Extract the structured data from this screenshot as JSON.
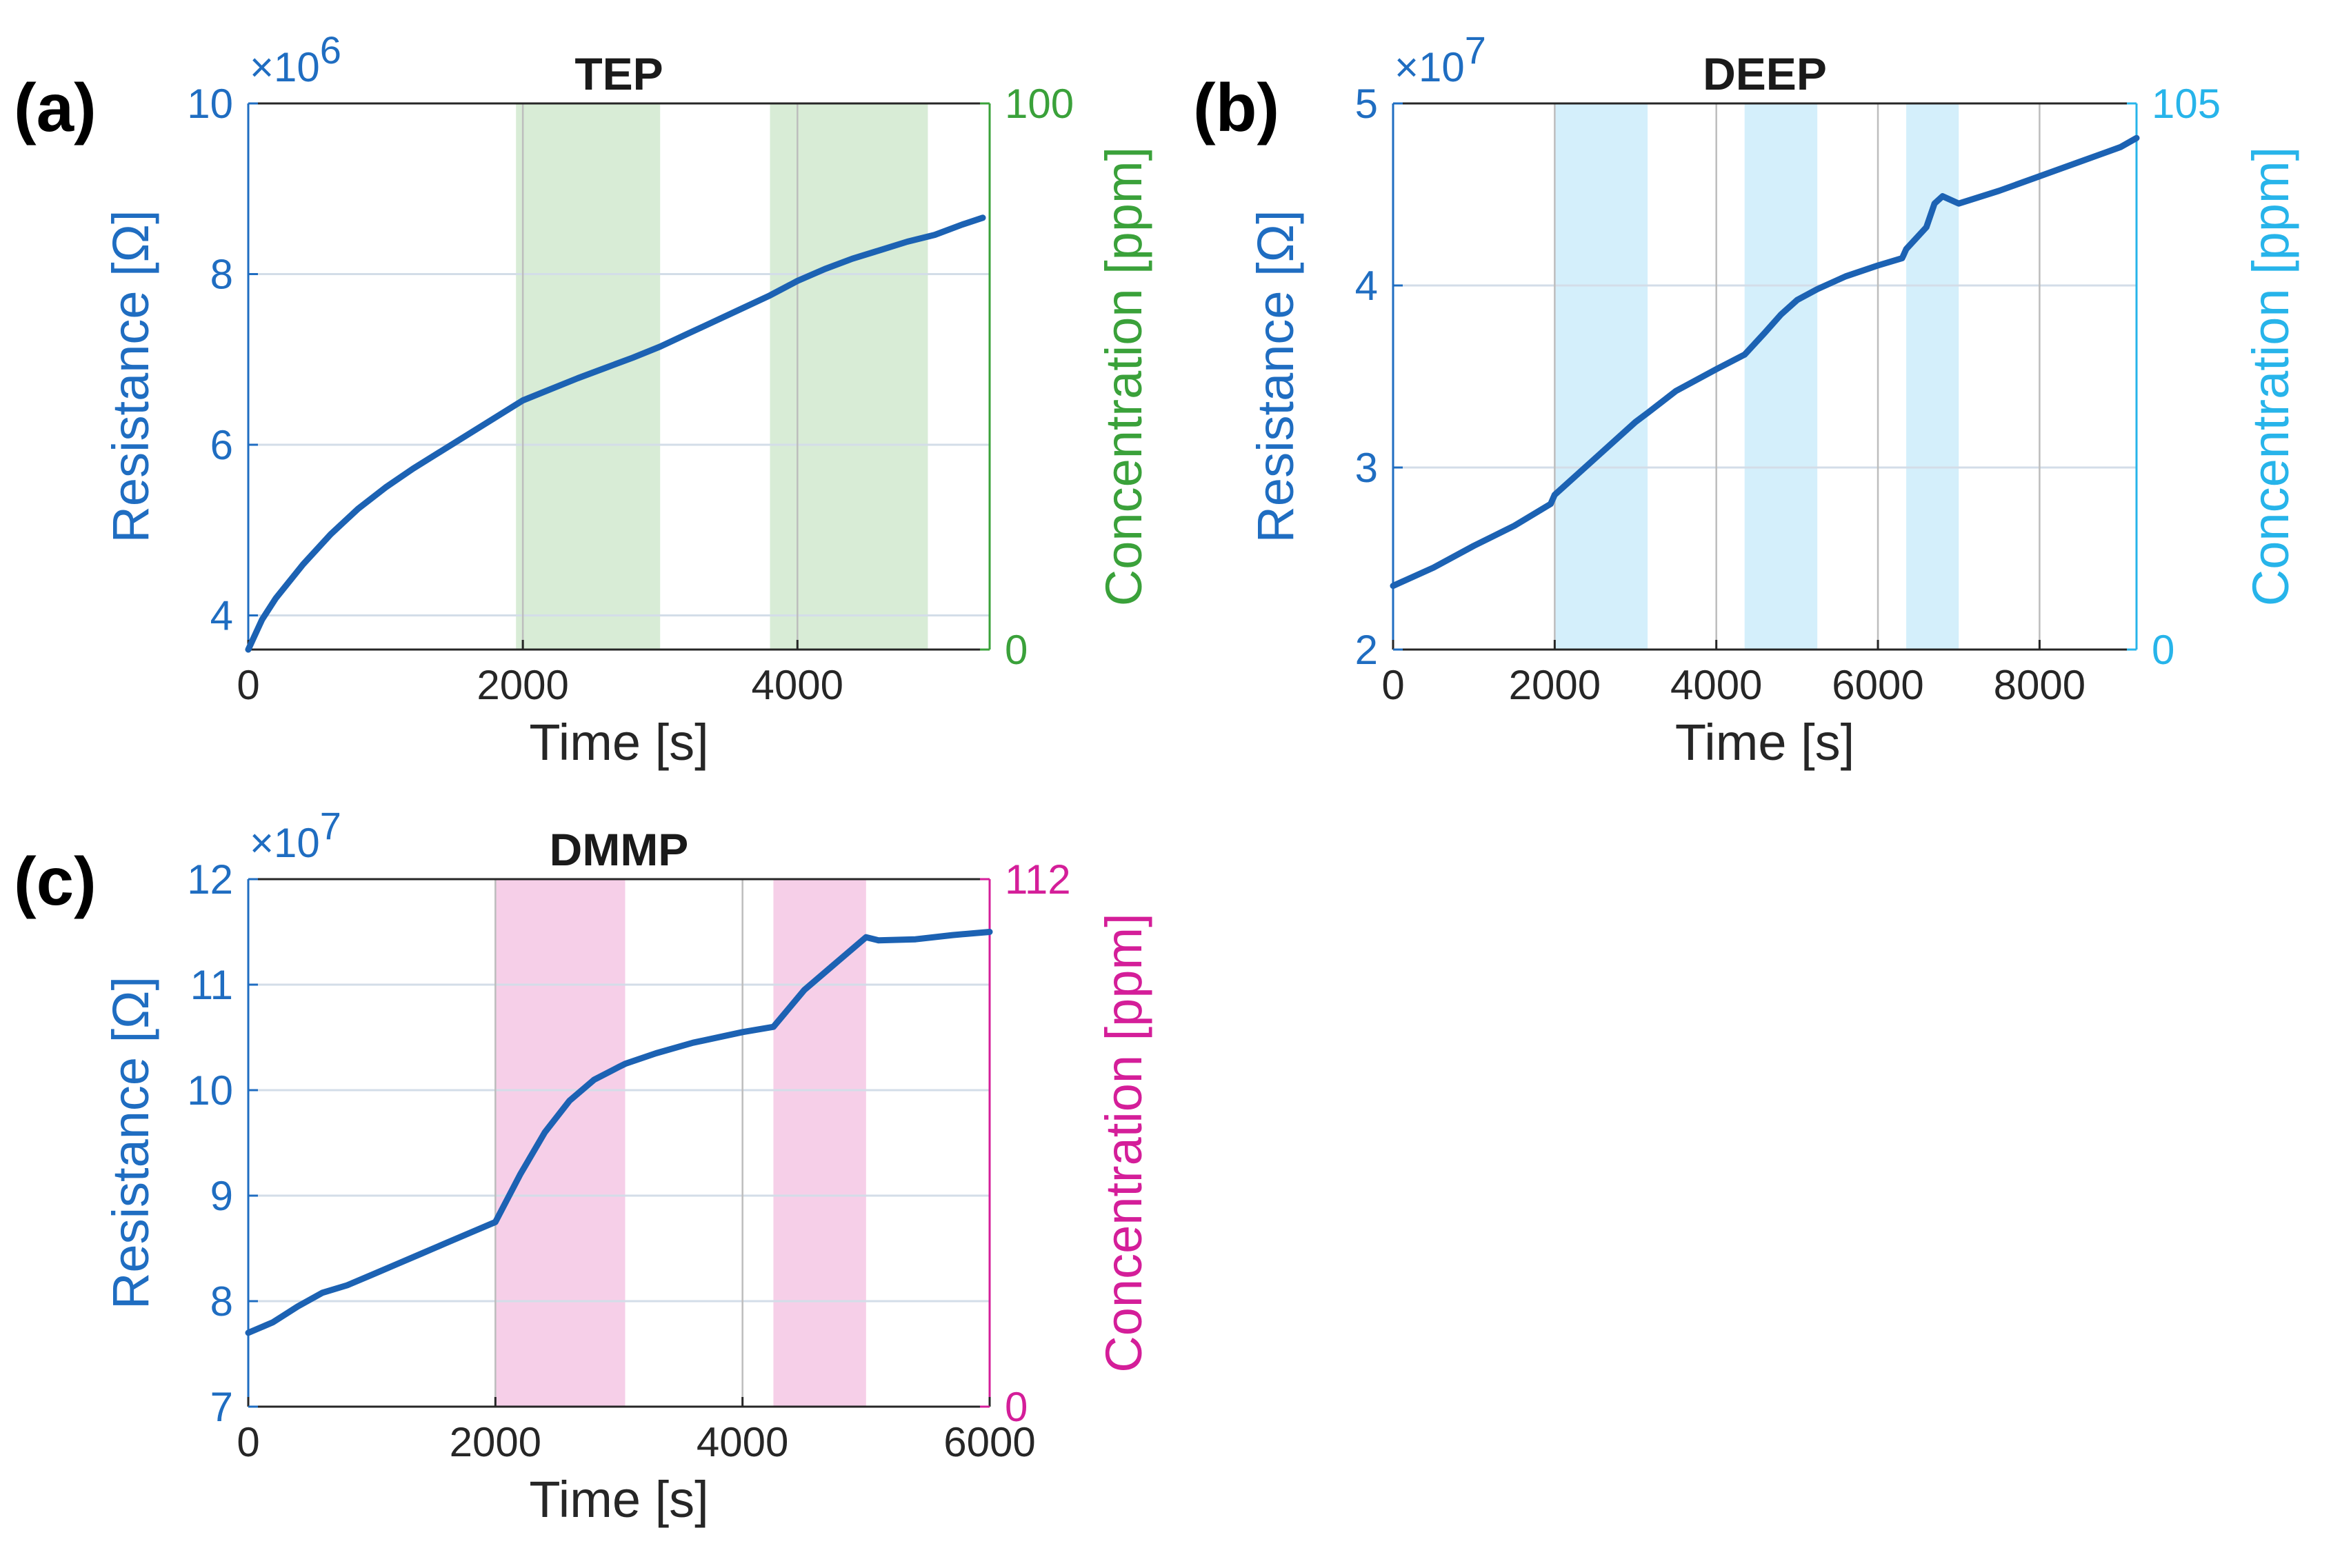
{
  "panel_labels": [
    "(a)",
    "(b)",
    "(c)"
  ],
  "colors": {
    "resistance": "#1f6dc1",
    "line": "#1c62b3",
    "grid": "#d3dde8",
    "vgrid": "#bdbdbd",
    "tep": "#3aa13a",
    "tep_band": "#d8ecd6",
    "deep": "#27b4ea",
    "deep_band": "#d4effb",
    "dmmp": "#d41e99",
    "dmmp_band": "#f6cfe8"
  },
  "chart_data": [
    {
      "type": "line",
      "panel": "(a)",
      "title": "TEP",
      "xlabel": "Time [s]",
      "ylabel": "Resistance [Ω]",
      "y2label": "Concentration [ppm]",
      "multiplier": "×10",
      "exponent": "6",
      "xlim": [
        0,
        5400
      ],
      "ylim": [
        3.6,
        10
      ],
      "y2lim": [
        0,
        100
      ],
      "xticks": [
        "0",
        "2000",
        "4000"
      ],
      "xtick_values": [
        0,
        2000,
        4000
      ],
      "yticks": [
        "4",
        "6",
        "8",
        "10"
      ],
      "ytick_values": [
        4,
        6,
        8,
        10
      ],
      "y2ticks": [
        "0",
        "100"
      ],
      "y2tick_values": [
        0,
        100
      ],
      "grid": true,
      "exposures": [
        [
          1950,
          3000
        ],
        [
          3800,
          4950
        ]
      ],
      "series": [
        {
          "name": "Resistance",
          "x": [
            0,
            100,
            200,
            400,
            600,
            800,
            1000,
            1200,
            1400,
            1600,
            1800,
            2000,
            2200,
            2400,
            2600,
            2800,
            3000,
            3200,
            3400,
            3600,
            3800,
            4000,
            4200,
            4400,
            4600,
            4800,
            5000,
            5200,
            5350
          ],
          "values": [
            3.6,
            3.95,
            4.2,
            4.6,
            4.95,
            5.25,
            5.5,
            5.72,
            5.92,
            6.12,
            6.32,
            6.52,
            6.65,
            6.78,
            6.9,
            7.02,
            7.15,
            7.3,
            7.45,
            7.6,
            7.75,
            7.92,
            8.06,
            8.18,
            8.28,
            8.38,
            8.46,
            8.58,
            8.66
          ]
        }
      ]
    },
    {
      "type": "line",
      "panel": "(b)",
      "title": "DEEP",
      "xlabel": "Time [s]",
      "ylabel": "Resistance [Ω]",
      "y2label": "Concentration [ppm]",
      "multiplier": "×10",
      "exponent": "7",
      "xlim": [
        0,
        9200
      ],
      "ylim": [
        2,
        5
      ],
      "y2lim": [
        0,
        105
      ],
      "xticks": [
        "0",
        "2000",
        "4000",
        "6000",
        "8000"
      ],
      "xtick_values": [
        0,
        2000,
        4000,
        6000,
        8000
      ],
      "yticks": [
        "2",
        "3",
        "4",
        "5"
      ],
      "ytick_values": [
        2,
        3,
        4,
        5
      ],
      "y2ticks": [
        "0",
        "105"
      ],
      "y2tick_values": [
        0,
        105
      ],
      "grid": true,
      "exposures": [
        [
          2000,
          3150
        ],
        [
          4350,
          5250
        ],
        [
          6350,
          7000
        ]
      ],
      "series": [
        {
          "name": "Resistance",
          "x": [
            0,
            500,
            1000,
            1500,
            1950,
            2000,
            2500,
            3000,
            3150,
            3500,
            4000,
            4350,
            4600,
            4800,
            5000,
            5250,
            5600,
            6000,
            6300,
            6350,
            6600,
            6700,
            6800,
            7000,
            7500,
            8000,
            8500,
            9000,
            9200
          ],
          "values": [
            2.35,
            2.45,
            2.57,
            2.68,
            2.8,
            2.85,
            3.05,
            3.25,
            3.3,
            3.42,
            3.54,
            3.62,
            3.74,
            3.84,
            3.92,
            3.98,
            4.05,
            4.11,
            4.15,
            4.2,
            4.32,
            4.45,
            4.49,
            4.45,
            4.52,
            4.6,
            4.68,
            4.76,
            4.81
          ]
        }
      ]
    },
    {
      "type": "line",
      "panel": "(c)",
      "title": "DMMP",
      "xlabel": "Time [s]",
      "ylabel": "Resistance [Ω]",
      "y2label": "Concentration [ppm]",
      "multiplier": "×10",
      "exponent": "7",
      "xlim": [
        0,
        6000
      ],
      "ylim": [
        7,
        12
      ],
      "y2lim": [
        0,
        112
      ],
      "xticks": [
        "0",
        "2000",
        "4000",
        "6000"
      ],
      "xtick_values": [
        0,
        2000,
        4000,
        6000
      ],
      "yticks": [
        "7",
        "8",
        "9",
        "10",
        "11",
        "12"
      ],
      "ytick_values": [
        7,
        8,
        9,
        10,
        11,
        12
      ],
      "y2ticks": [
        "0",
        "112"
      ],
      "y2tick_values": [
        0,
        112
      ],
      "grid": true,
      "exposures": [
        [
          2000,
          3050
        ],
        [
          4250,
          5000
        ]
      ],
      "series": [
        {
          "name": "Resistance",
          "x": [
            0,
            200,
            400,
            600,
            800,
            1000,
            1200,
            1400,
            1600,
            1800,
            2000,
            2200,
            2400,
            2600,
            2800,
            3000,
            3050,
            3300,
            3600,
            4000,
            4250,
            4500,
            4750,
            5000,
            5100,
            5400,
            5700,
            6000
          ],
          "values": [
            7.7,
            7.8,
            7.95,
            8.08,
            8.15,
            8.25,
            8.35,
            8.45,
            8.55,
            8.65,
            8.75,
            9.2,
            9.6,
            9.9,
            10.1,
            10.22,
            10.25,
            10.35,
            10.45,
            10.55,
            10.6,
            10.95,
            11.2,
            11.45,
            11.42,
            11.43,
            11.47,
            11.5
          ]
        }
      ]
    }
  ]
}
